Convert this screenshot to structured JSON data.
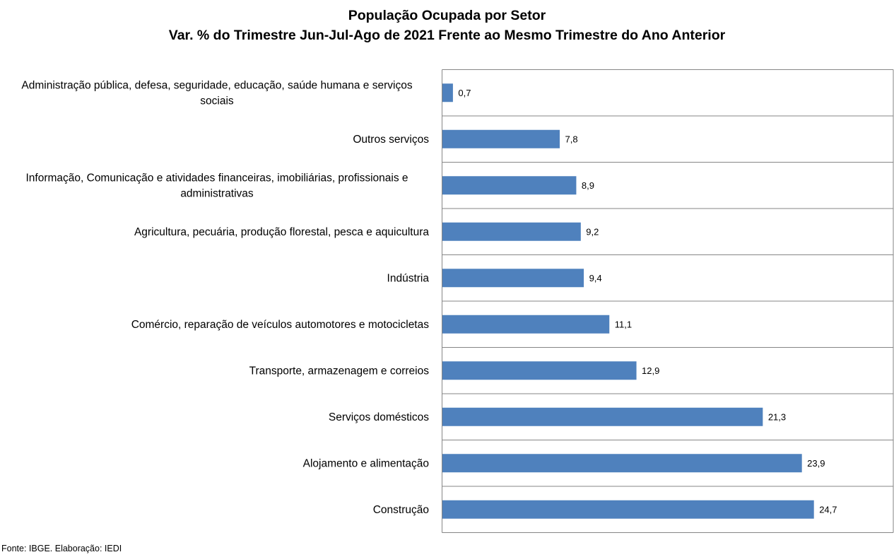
{
  "chart_data": {
    "type": "bar",
    "orientation": "horizontal",
    "title": "População Ocupada por Setor",
    "subtitle": "Var. % do Trimestre Jun-Jul-Ago de 2021 Frente ao Mesmo Trimestre do Ano Anterior",
    "xlabel": "",
    "ylabel": "",
    "xlim": [
      0,
      30
    ],
    "grid": "horizontal separators between categories",
    "legend": "none",
    "bar_color": "#4f81bd",
    "categories": [
      "Administração pública, defesa, seguridade, educação, saúde humana e serviços sociais",
      "Outros serviços",
      "Informação, Comunicação e atividades financeiras, imobiliárias, profissionais e administrativas",
      "Agricultura, pecuária, produção florestal, pesca e aquicultura",
      "Indústria",
      "Comércio, reparação de veículos automotores e motocicletas",
      "Transporte, armazenagem e correios",
      "Serviços domésticos",
      "Alojamento e alimentação",
      "Construção"
    ],
    "category_lines": [
      [
        "Administração pública, defesa, seguridade, educação, saúde humana e serviços",
        "sociais"
      ],
      [
        "Outros serviços"
      ],
      [
        "Informação, Comunicação e atividades financeiras, imobiliárias, profissionais e",
        "administrativas"
      ],
      [
        "Agricultura, pecuária, produção florestal, pesca e aquicultura"
      ],
      [
        "Indústria"
      ],
      [
        "Comércio, reparação de veículos automotores e motocicletas"
      ],
      [
        "Transporte, armazenagem e correios"
      ],
      [
        "Serviços domésticos"
      ],
      [
        "Alojamento e alimentação"
      ],
      [
        "Construção"
      ]
    ],
    "values": [
      0.7,
      7.8,
      8.9,
      9.2,
      9.4,
      11.1,
      12.9,
      21.3,
      23.9,
      24.7
    ],
    "data_labels": [
      "0,7",
      "7,8",
      "8,9",
      "9,2",
      "9,4",
      "11,1",
      "12,9",
      "21,3",
      "23,9",
      "24,7"
    ]
  },
  "source": "Fonte: IBGE. Elaboração: IEDI"
}
